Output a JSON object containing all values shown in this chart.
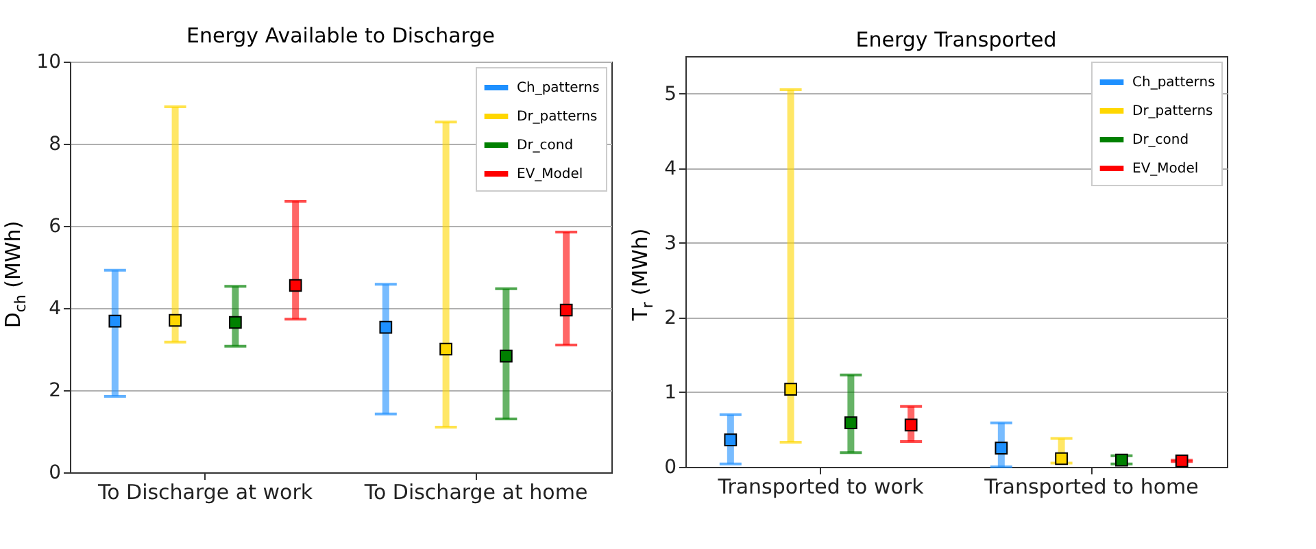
{
  "chart_data": [
    {
      "type": "scatter",
      "title": "Energy Available to Discharge",
      "ylabel": "D$_{ch}$ (MWh)",
      "categories": [
        "To Discharge at work",
        "To Discharge at home"
      ],
      "ylim": [
        0,
        10
      ],
      "yticks": [
        0,
        2,
        4,
        6,
        8,
        10
      ],
      "grid": "y",
      "legend": "top right",
      "marker": "square",
      "series": [
        {
          "name": "Ch_patterns",
          "color": "#1e90ff",
          "values": [
            3.68,
            3.53
          ],
          "errors": [
            [
              1.85,
              4.92
            ],
            [
              1.42,
              4.58
            ]
          ]
        },
        {
          "name": "Dr_patterns",
          "color": "#ffd700",
          "values": [
            3.7,
            3.0
          ],
          "errors": [
            [
              3.17,
              8.9
            ],
            [
              1.1,
              8.53
            ]
          ]
        },
        {
          "name": "Dr_cond",
          "color": "#008000",
          "values": [
            3.65,
            2.83
          ],
          "errors": [
            [
              3.07,
              4.53
            ],
            [
              1.3,
              4.47
            ]
          ]
        },
        {
          "name": "EV_Model",
          "color": "#ff0000",
          "values": [
            4.55,
            3.95
          ],
          "errors": [
            [
              3.73,
              6.6
            ],
            [
              3.1,
              5.85
            ]
          ]
        }
      ]
    },
    {
      "type": "scatter",
      "title": "Energy Transported",
      "ylabel": "T$_{r}$ (MWh)",
      "categories": [
        "Transported to work",
        "Transported to home"
      ],
      "ylim": [
        0,
        5.5
      ],
      "yticks": [
        0,
        1,
        2,
        3,
        4,
        5
      ],
      "grid": "y",
      "legend": "top right",
      "marker": "square",
      "series": [
        {
          "name": "Ch_patterns",
          "color": "#1e90ff",
          "values": [
            0.36,
            0.25
          ],
          "errors": [
            [
              0.04,
              0.7
            ],
            [
              0.0,
              0.59
            ]
          ]
        },
        {
          "name": "Dr_patterns",
          "color": "#ffd700",
          "values": [
            1.04,
            0.11
          ],
          "errors": [
            [
              0.33,
              5.05
            ],
            [
              0.05,
              0.38
            ]
          ]
        },
        {
          "name": "Dr_cond",
          "color": "#008000",
          "values": [
            0.59,
            0.09
          ],
          "errors": [
            [
              0.19,
              1.23
            ],
            [
              0.04,
              0.15
            ]
          ]
        },
        {
          "name": "EV_Model",
          "color": "#ff0000",
          "values": [
            0.56,
            0.08
          ],
          "errors": [
            [
              0.34,
              0.81
            ],
            [
              0.07,
              0.09
            ]
          ]
        }
      ]
    }
  ]
}
